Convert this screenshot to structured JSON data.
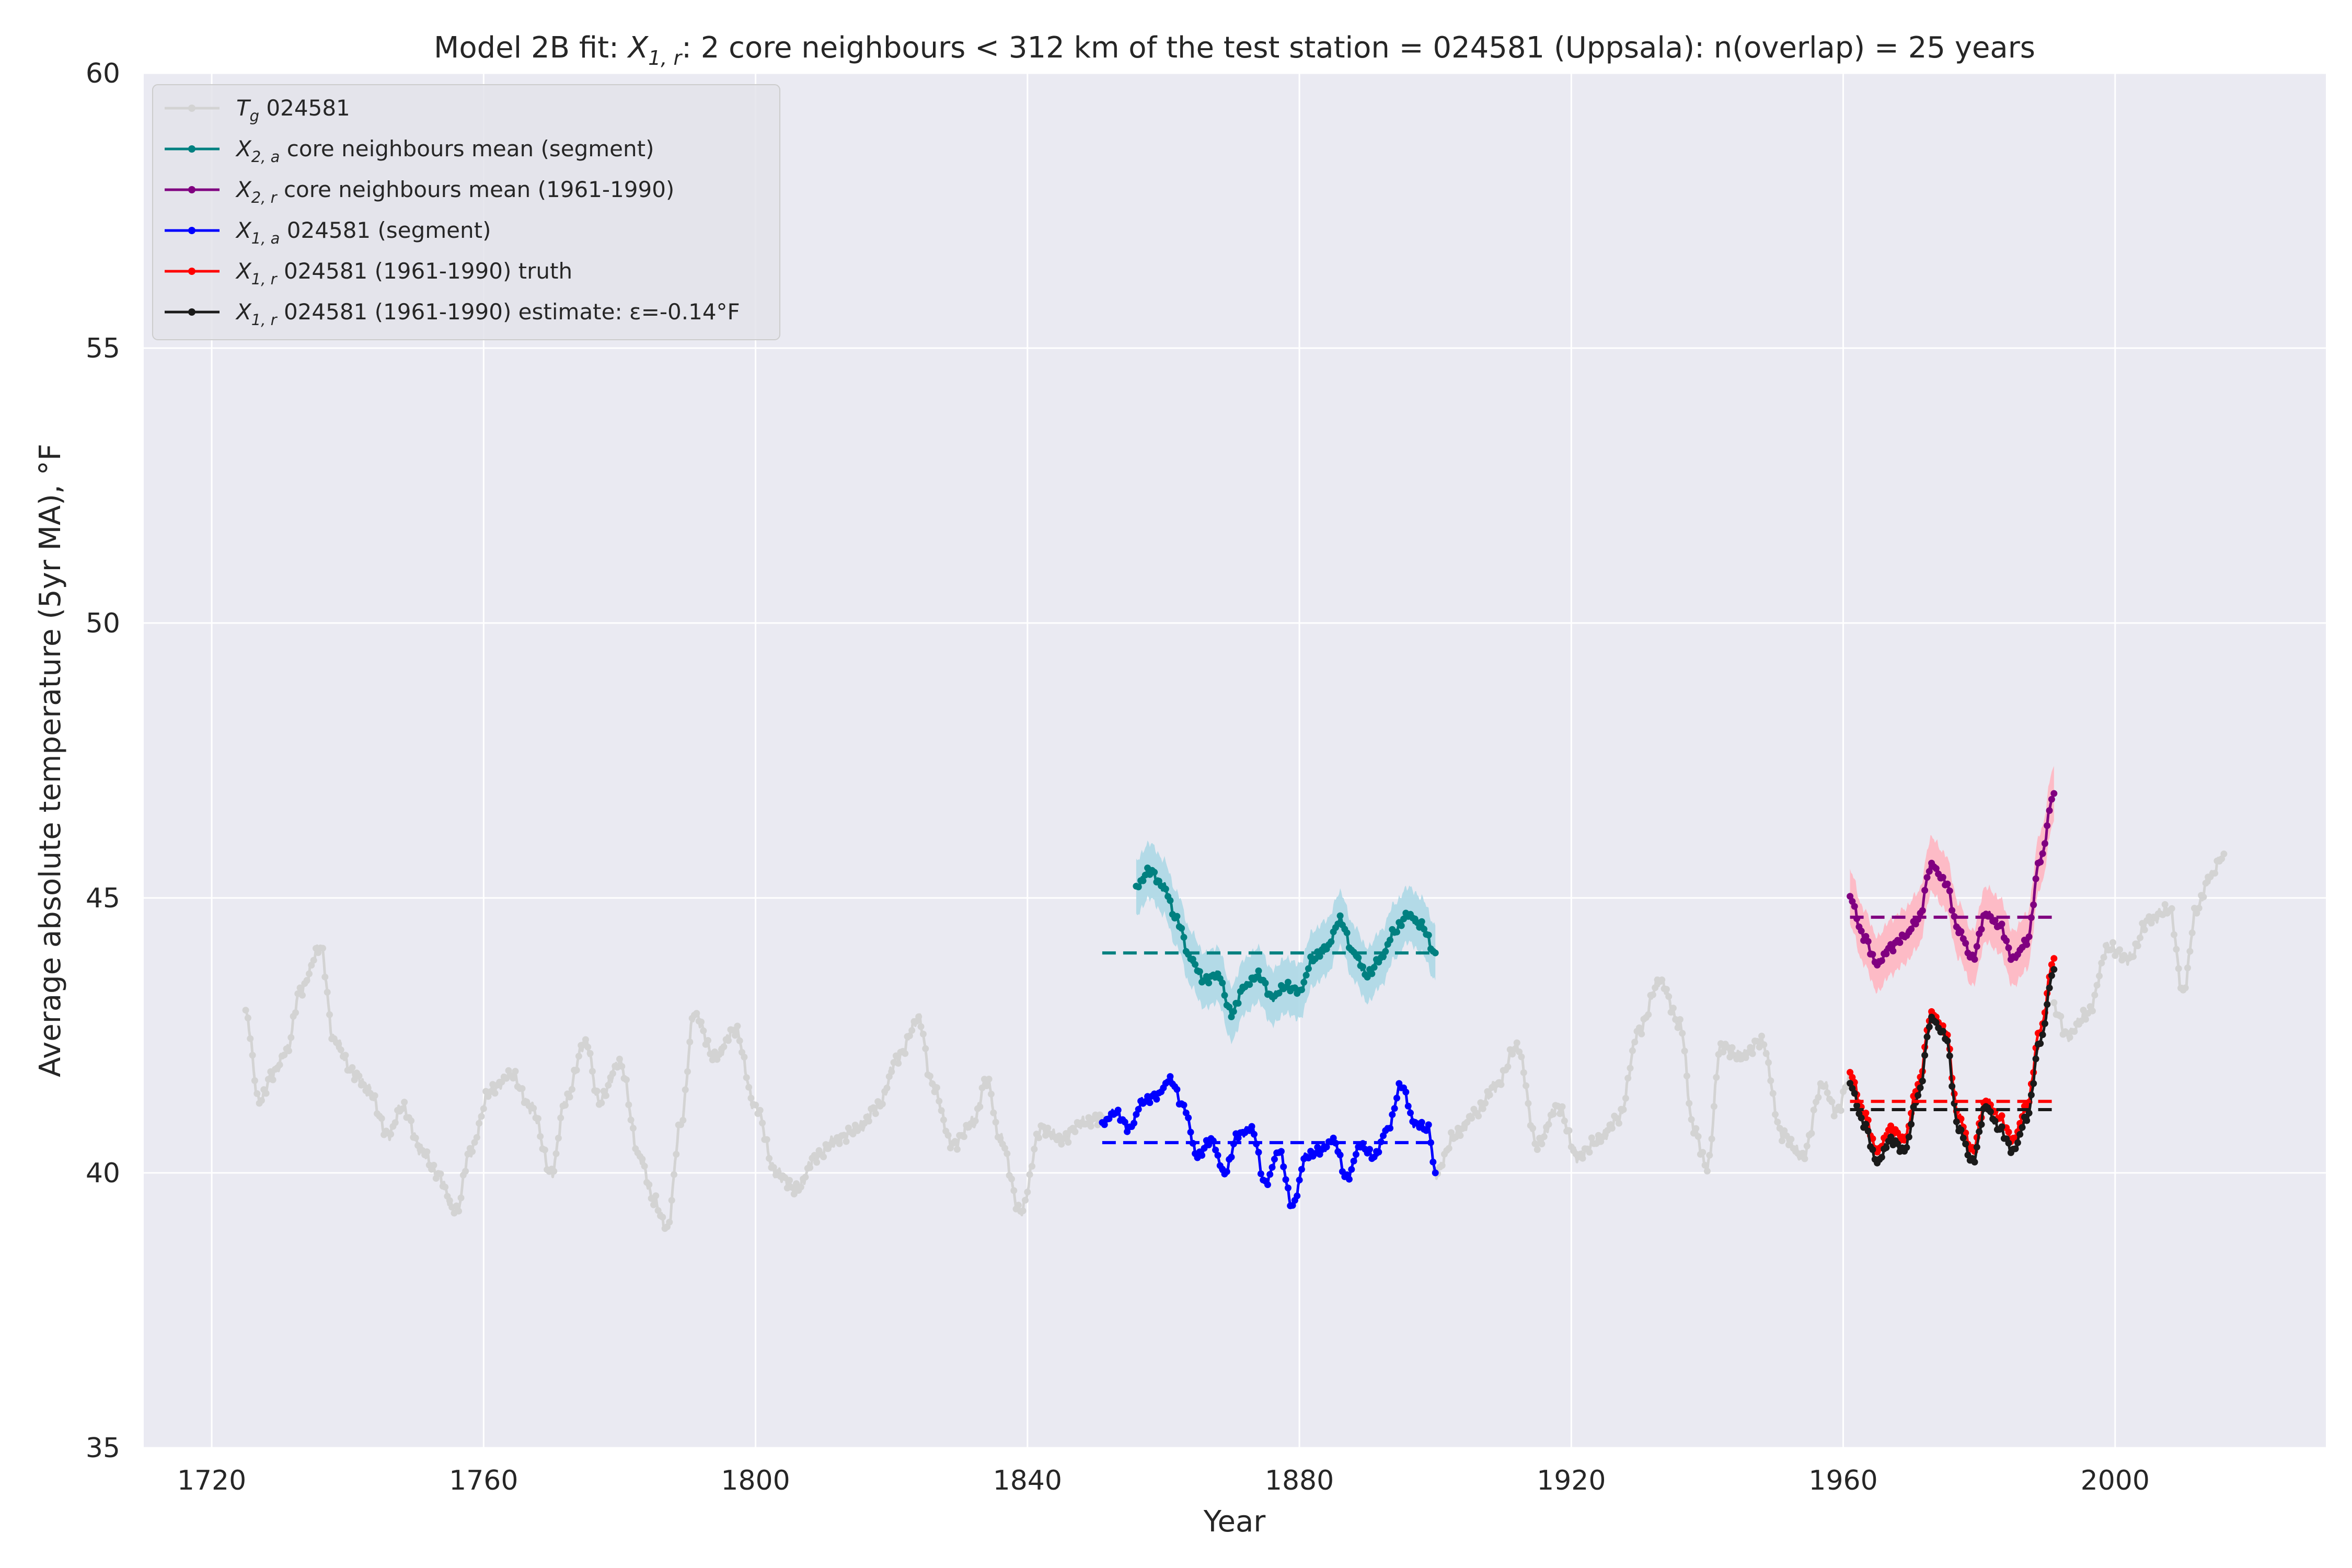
{
  "chart_data": {
    "type": "line",
    "title": "Model 2B fit: X_{1,r}: 2 core neighbours < 312 km of the test station = 024581 (Uppsala): n(overlap) = 25 years",
    "title_parts": {
      "before": "Model 2B fit: ",
      "sym": "X",
      "sub": "1, r",
      "after": ": 2 core neighbours < 312 km of the test station = 024581 (Uppsala): n(overlap) = 25 years"
    },
    "xlabel": "Year",
    "ylabel": "Average absolute temperature (5yr MA), °F",
    "xlim": [
      1710,
      2031
    ],
    "ylim": [
      35,
      60
    ],
    "x_ticks": [
      1720,
      1760,
      1800,
      1840,
      1880,
      1920,
      1960,
      2000
    ],
    "y_ticks": [
      35,
      40,
      45,
      50,
      55,
      60
    ],
    "grid": true,
    "background": "#EAEAF2",
    "legend_position": "top-left",
    "series": [
      {
        "name": "T_g 024581",
        "label_sym": "T",
        "label_sub": "g",
        "label_rest": " 024581",
        "color": "#D3D3D3",
        "x": [
          1725,
          1727,
          1729,
          1731,
          1733,
          1736,
          1738,
          1741,
          1743,
          1746,
          1748,
          1751,
          1753,
          1756,
          1758,
          1761,
          1764,
          1767,
          1770,
          1772,
          1775,
          1777,
          1780,
          1783,
          1785,
          1787,
          1789,
          1791,
          1794,
          1797,
          1800,
          1803,
          1806,
          1809,
          1812,
          1815,
          1818,
          1821,
          1824,
          1826,
          1829,
          1832,
          1834,
          1836,
          1839,
          1842,
          1845,
          1848,
          1851,
          1900,
          1903,
          1906,
          1909,
          1912,
          1915,
          1918,
          1921,
          1924,
          1927,
          1930,
          1933,
          1936,
          1938,
          1940,
          1942,
          1945,
          1948,
          1951,
          1954,
          1957,
          1959,
          1961,
          1991,
          1993,
          1996,
          1999,
          2002,
          2005,
          2008,
          2010,
          2012,
          2014,
          2016
        ],
        "values": [
          42.9,
          41.3,
          41.8,
          42.2,
          43.3,
          44.1,
          42.4,
          41.8,
          41.5,
          40.7,
          41.2,
          40.4,
          40.0,
          39.3,
          40.4,
          41.5,
          41.8,
          41.2,
          40.0,
          41.3,
          42.4,
          41.3,
          42.0,
          40.3,
          39.5,
          39.0,
          40.9,
          42.9,
          42.1,
          42.6,
          41.2,
          40.0,
          39.7,
          40.3,
          40.6,
          40.8,
          41.2,
          42.1,
          42.8,
          41.6,
          40.5,
          40.9,
          41.7,
          40.6,
          39.3,
          40.8,
          40.6,
          40.9,
          41.0,
          40.0,
          40.7,
          41.1,
          41.6,
          42.3,
          40.5,
          41.2,
          40.3,
          40.6,
          41.0,
          42.6,
          43.5,
          42.7,
          40.8,
          40.1,
          42.3,
          42.1,
          42.4,
          40.7,
          40.3,
          41.6,
          41.1,
          41.7,
          43.0,
          42.5,
          42.9,
          44.1,
          43.9,
          44.6,
          44.8,
          43.3,
          44.8,
          45.4,
          45.8
        ]
      },
      {
        "name": "X_{2,a} core neighbours mean (segment)",
        "label_sym": "X",
        "label_sub": "2, a",
        "label_rest": " core neighbours mean (segment)",
        "color": "#008080",
        "band_color": "#ADD8E6",
        "band_half_width": 0.5,
        "x": [
          1856,
          1858,
          1860,
          1862,
          1864,
          1866,
          1868,
          1870,
          1872,
          1874,
          1876,
          1878,
          1880,
          1882,
          1884,
          1886,
          1888,
          1890,
          1892,
          1894,
          1896,
          1898,
          1900
        ],
        "values": [
          45.2,
          45.5,
          45.2,
          44.6,
          43.9,
          43.5,
          43.6,
          42.9,
          43.4,
          43.6,
          43.2,
          43.4,
          43.3,
          43.9,
          44.1,
          44.6,
          44.0,
          43.6,
          43.9,
          44.4,
          44.7,
          44.5,
          44.0
        ],
        "mean": 44.0,
        "mean_x_range": [
          1851,
          1900
        ]
      },
      {
        "name": "X_{2,r} core neighbours mean (1961-1990)",
        "label_sym": "X",
        "label_sub": "2, r",
        "label_rest": " core neighbours mean (1961-1990)",
        "color": "#800080",
        "band_color": "#FFB6C1",
        "band_half_width": 0.5,
        "x": [
          1961,
          1963,
          1965,
          1967,
          1969,
          1971,
          1973,
          1975,
          1977,
          1979,
          1981,
          1983,
          1985,
          1987,
          1989,
          1991
        ],
        "values": [
          45.0,
          44.3,
          43.8,
          44.1,
          44.3,
          44.6,
          45.6,
          45.3,
          44.4,
          43.9,
          44.7,
          44.5,
          43.9,
          44.2,
          45.7,
          46.9
        ],
        "mean": 44.65,
        "mean_x_range": [
          1961,
          1991
        ]
      },
      {
        "name": "X_{1,a} 024581 (segment)",
        "label_sym": "X",
        "label_sub": "1, a",
        "label_rest": " 024581 (segment)",
        "color": "#0000FF",
        "x": [
          1851,
          1853,
          1855,
          1857,
          1859,
          1861,
          1863,
          1865,
          1867,
          1869,
          1871,
          1873,
          1875,
          1877,
          1879,
          1881,
          1883,
          1885,
          1887,
          1889,
          1891,
          1893,
          1895,
          1897,
          1899,
          1900
        ],
        "values": [
          40.9,
          41.1,
          40.8,
          41.3,
          41.4,
          41.7,
          41.2,
          40.3,
          40.6,
          40.0,
          40.7,
          40.8,
          39.8,
          40.4,
          39.4,
          40.3,
          40.4,
          40.6,
          39.9,
          40.5,
          40.3,
          40.8,
          41.6,
          40.9,
          40.8,
          40.0
        ],
        "mean": 40.55,
        "mean_x_range": [
          1851,
          1900
        ]
      },
      {
        "name": "X_{1,r} 024581 (1961-1990) truth",
        "label_sym": "X",
        "label_sub": "1, r",
        "label_rest": " 024581 (1961-1990) truth",
        "color": "#FF0000",
        "x": [
          1961,
          1963,
          1965,
          1967,
          1969,
          1971,
          1973,
          1975,
          1977,
          1979,
          1981,
          1983,
          1985,
          1987,
          1989,
          1991
        ],
        "values": [
          41.8,
          41.1,
          40.4,
          40.8,
          40.6,
          41.6,
          42.9,
          42.6,
          41.0,
          40.4,
          41.3,
          41.0,
          40.6,
          41.2,
          42.6,
          43.9
        ],
        "mean": 41.3,
        "mean_x_range": [
          1961,
          1991
        ]
      },
      {
        "name": "X_{1,r} 024581 (1961-1990) estimate: ε=-0.14°F",
        "label_sym": "X",
        "label_sub": "1, r",
        "label_rest": " 024581 (1961-1990) estimate: ε=-0.14°F",
        "color": "#1A1A1A",
        "x": [
          1961,
          1963,
          1965,
          1967,
          1969,
          1971,
          1973,
          1975,
          1977,
          1979,
          1981,
          1983,
          1985,
          1987,
          1989,
          1991
        ],
        "values": [
          41.6,
          40.9,
          40.2,
          40.6,
          40.4,
          41.4,
          42.8,
          42.5,
          40.8,
          40.2,
          41.2,
          40.8,
          40.4,
          41.0,
          42.4,
          43.7
        ],
        "mean": 41.15,
        "mean_x_range": [
          1961,
          1991
        ]
      }
    ]
  }
}
